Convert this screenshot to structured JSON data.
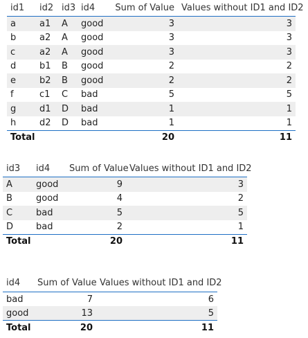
{
  "table1": {
    "headers": [
      "id1",
      "id2",
      "id3",
      "id4",
      "Sum of Value",
      "Values without ID1 and ID2"
    ],
    "rows": [
      [
        "a",
        "a1",
        "A",
        "good",
        "3",
        "3"
      ],
      [
        "b",
        "a2",
        "A",
        "good",
        "3",
        "3"
      ],
      [
        "c",
        "a2",
        "A",
        "good",
        "3",
        "3"
      ],
      [
        "d",
        "b1",
        "B",
        "good",
        "2",
        "2"
      ],
      [
        "e",
        "b2",
        "B",
        "good",
        "2",
        "2"
      ],
      [
        "f",
        "c1",
        "C",
        "bad",
        "5",
        "5"
      ],
      [
        "g",
        "d1",
        "D",
        "bad",
        "1",
        "1"
      ],
      [
        "h",
        "d2",
        "D",
        "bad",
        "1",
        "1"
      ]
    ],
    "total": {
      "label": "Total",
      "sum": "20",
      "values": "11"
    }
  },
  "table2": {
    "headers": [
      "id3",
      "id4",
      "Sum of Value",
      "Values without ID1 and ID2"
    ],
    "rows": [
      [
        "A",
        "good",
        "9",
        "3"
      ],
      [
        "B",
        "good",
        "4",
        "2"
      ],
      [
        "C",
        "bad",
        "5",
        "5"
      ],
      [
        "D",
        "bad",
        "2",
        "1"
      ]
    ],
    "total": {
      "label": "Total",
      "sum": "20",
      "values": "11"
    }
  },
  "table3": {
    "headers": [
      "id4",
      "Sum of Value",
      "Values without ID1 and ID2"
    ],
    "rows": [
      [
        "bad",
        "7",
        "6"
      ],
      [
        "good",
        "13",
        "5"
      ]
    ],
    "total": {
      "label": "Total",
      "sum": "20",
      "values": "11"
    }
  },
  "colors": {
    "accent_line": "#1e6fc4",
    "alt_row": "#eeeeee",
    "background": "#ffffff"
  }
}
